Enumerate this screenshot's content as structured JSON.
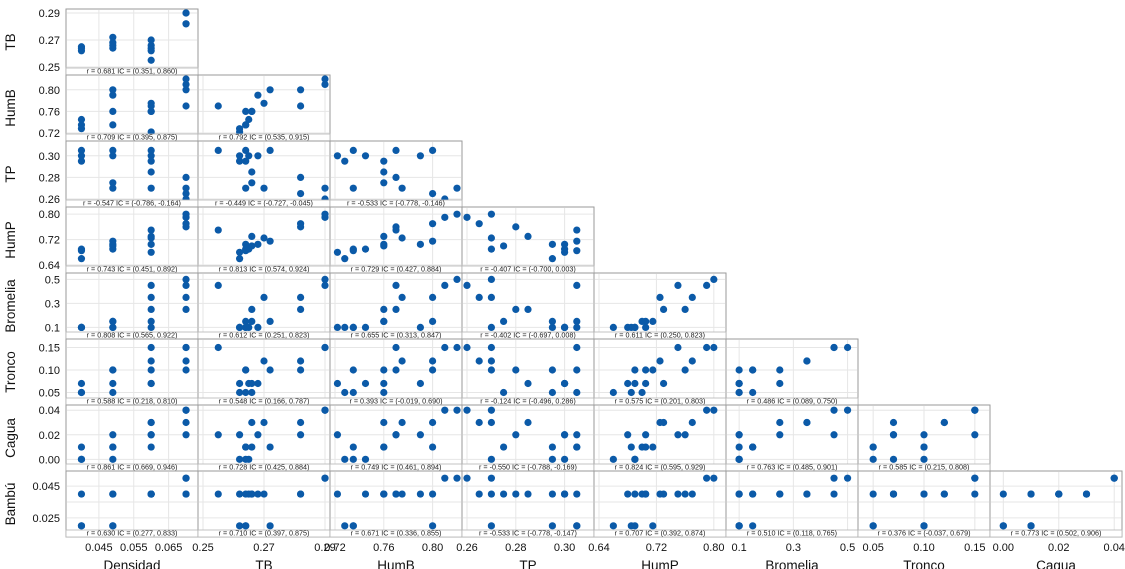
{
  "chart_data": {
    "type": "scatter",
    "variables": [
      "Densidad",
      "TB",
      "HumB",
      "TP",
      "HumP",
      "Bromelia",
      "Tronco",
      "Cagua",
      "Bambú"
    ],
    "x_variables": [
      "Densidad",
      "TB",
      "HumB",
      "TP",
      "HumP",
      "Bromelia",
      "Tronco",
      "Cagua"
    ],
    "y_variables": [
      "TB",
      "HumB",
      "TP",
      "HumP",
      "Bromelia",
      "Tronco",
      "Cagua",
      "Bambú"
    ],
    "axes": {
      "Densidad": {
        "min": 0.037,
        "max": 0.072,
        "ticks": [
          0.045,
          0.055,
          0.065
        ],
        "tick_labels": [
          "0.045",
          "0.055",
          "0.065"
        ]
      },
      "TB": {
        "min": 0.25,
        "max": 0.29,
        "ticks": [
          0.25,
          0.27,
          0.29
        ],
        "tick_labels": [
          "0.25",
          "0.27",
          "0.29"
        ]
      },
      "HumB": {
        "min": 0.72,
        "max": 0.82,
        "ticks": [
          0.72,
          0.76,
          0.8
        ],
        "tick_labels": [
          "0.72",
          "0.76",
          "0.80"
        ]
      },
      "TP": {
        "min": 0.26,
        "max": 0.31,
        "ticks": [
          0.26,
          0.28,
          0.3
        ],
        "tick_labels": [
          "0.26",
          "0.28",
          "0.30"
        ]
      },
      "HumP": {
        "min": 0.64,
        "max": 0.81,
        "ticks": [
          0.64,
          0.72,
          0.8
        ],
        "tick_labels": [
          "0.64",
          "0.72",
          "0.80"
        ]
      },
      "Bromelia": {
        "min": 0.07,
        "max": 0.52,
        "ticks": [
          0.1,
          0.3,
          0.5
        ],
        "tick_labels": [
          "0.1",
          "0.3",
          "0.5"
        ]
      },
      "Tronco": {
        "min": 0.04,
        "max": 0.16,
        "ticks": [
          0.05,
          0.1,
          0.15
        ],
        "tick_labels": [
          "0.05",
          "0.10",
          "0.15"
        ]
      },
      "Cagua": {
        "min": -0.003,
        "max": 0.041,
        "ticks": [
          0.0,
          0.02,
          0.04
        ],
        "tick_labels": [
          "0.00",
          "0.02",
          "0.04"
        ]
      },
      "Bambú": {
        "min": 0.018,
        "max": 0.052,
        "ticks": [
          0.025,
          0.045
        ],
        "tick_labels": [
          "0.025",
          "0.045"
        ]
      }
    },
    "y_ticks": {
      "TB": {
        "ticks": [
          0.25,
          0.27,
          0.29
        ],
        "tick_labels": [
          "0.25",
          "0.27",
          "0.29"
        ]
      },
      "HumB": {
        "ticks": [
          0.72,
          0.76,
          0.8
        ],
        "tick_labels": [
          "0.72",
          "0.76",
          "0.80"
        ]
      },
      "TP": {
        "ticks": [
          0.26,
          0.28,
          0.3
        ],
        "tick_labels": [
          "0.26",
          "0.28",
          "0.30"
        ]
      },
      "HumP": {
        "ticks": [
          0.64,
          0.72,
          0.8
        ],
        "tick_labels": [
          "0.64",
          "0.72",
          "0.80"
        ]
      },
      "Bromelia": {
        "ticks": [
          0.1,
          0.3,
          0.5
        ],
        "tick_labels": [
          "0.1",
          "0.3",
          "0.5"
        ]
      },
      "Tronco": {
        "ticks": [
          0.05,
          0.1,
          0.15
        ],
        "tick_labels": [
          "0.05",
          "0.10",
          "0.15"
        ]
      },
      "Cagua": {
        "ticks": [
          0.0,
          0.02,
          0.04
        ],
        "tick_labels": [
          "0.00",
          "0.02",
          "0.04"
        ]
      },
      "Bambú": {
        "ticks": [
          0.025,
          0.035,
          0.045
        ],
        "tick_labels": [
          "0.025",
          "",
          "0.045"
        ]
      }
    },
    "x_tick_labels_bottom": [
      [
        "0.045",
        "0.055",
        "0.065"
      ],
      [
        "0.25",
        "0.27",
        "0.29"
      ],
      [
        "0.72",
        "0.76",
        "0.80"
      ],
      [
        "0.26",
        "0.28",
        "0.30"
      ],
      [
        "0.64",
        "0.72",
        "0.80"
      ],
      [
        "0.1",
        "0.3",
        "0.5"
      ],
      [
        "0.05",
        "0.10",
        "0.15"
      ],
      [
        "0.00",
        "0.02",
        "0.04"
      ]
    ],
    "grid": true,
    "marker_color": "#0b5aa8",
    "observations": {
      "Densidad": [
        0.04,
        0.04,
        0.04,
        0.049,
        0.049,
        0.049,
        0.049,
        0.06,
        0.06,
        0.06,
        0.06,
        0.06,
        0.07,
        0.07,
        0.07,
        0.07
      ],
      "TB": [
        0.262,
        0.264,
        0.265,
        0.264,
        0.266,
        0.268,
        0.272,
        0.262,
        0.264,
        0.266,
        0.27,
        0.255,
        0.282,
        0.282,
        0.29,
        0.29
      ],
      "HumB": [
        0.728,
        0.735,
        0.745,
        0.735,
        0.76,
        0.79,
        0.8,
        0.722,
        0.76,
        0.76,
        0.775,
        0.77,
        0.77,
        0.8,
        0.81,
        0.82
      ],
      "TP": [
        0.295,
        0.305,
        0.3,
        0.27,
        0.275,
        0.3,
        0.305,
        0.3,
        0.295,
        0.285,
        0.27,
        0.305,
        0.28,
        0.265,
        0.26,
        0.27
      ],
      "HumP": [
        0.66,
        0.685,
        0.69,
        0.69,
        0.7,
        0.705,
        0.715,
        0.68,
        0.705,
        0.73,
        0.725,
        0.75,
        0.76,
        0.77,
        0.79,
        0.8
      ],
      "Bromelia": [
        0.1,
        0.1,
        0.1,
        0.1,
        0.15,
        0.1,
        0.15,
        0.1,
        0.15,
        0.25,
        0.35,
        0.45,
        0.25,
        0.35,
        0.45,
        0.5
      ],
      "Tronco": [
        0.05,
        0.05,
        0.07,
        0.1,
        0.05,
        0.07,
        0.1,
        0.07,
        0.1,
        0.07,
        0.12,
        0.15,
        0.1,
        0.12,
        0.15,
        0.15
      ],
      "Cagua": [
        0.0,
        0.01,
        0.0,
        0.0,
        0.01,
        0.02,
        0.01,
        0.02,
        0.01,
        0.03,
        0.03,
        0.02,
        0.02,
        0.03,
        0.04,
        0.04
      ],
      "Bambú": [
        0.02,
        0.02,
        0.04,
        0.02,
        0.04,
        0.04,
        0.02,
        0.04,
        0.04,
        0.04,
        0.04,
        0.04,
        0.04,
        0.04,
        0.05,
        0.05
      ]
    },
    "panels": [
      {
        "row": "TB",
        "col": "Densidad",
        "stat": "r = 0.681  IC = (0.351, 0.860)"
      },
      {
        "row": "HumB",
        "col": "Densidad",
        "stat": "r = 0.709  IC = (0.395, 0.875)"
      },
      {
        "row": "HumB",
        "col": "TB",
        "stat": "r = 0.792  IC = (0.535, 0.915)"
      },
      {
        "row": "TP",
        "col": "Densidad",
        "stat": "r = -0.547  IC = (-0.786, -0.164)"
      },
      {
        "row": "TP",
        "col": "TB",
        "stat": "r = -0.449  IC = (-0.727, -0.045)"
      },
      {
        "row": "TP",
        "col": "HumB",
        "stat": "r = -0.533  IC = (-0.778, -0.146)"
      },
      {
        "row": "HumP",
        "col": "Densidad",
        "stat": "r = 0.743  IC = (0.451, 0.892)"
      },
      {
        "row": "HumP",
        "col": "TB",
        "stat": "r = 0.813  IC = (0.574, 0.924)"
      },
      {
        "row": "HumP",
        "col": "HumB",
        "stat": "r = 0.729  IC = (0.427, 0.884)"
      },
      {
        "row": "HumP",
        "col": "TP",
        "stat": "r = -0.407  IC = (-0.700, 0.003)"
      },
      {
        "row": "Bromelia",
        "col": "Densidad",
        "stat": "r = 0.808  IC = (0.565, 0.922)"
      },
      {
        "row": "Bromelia",
        "col": "TB",
        "stat": "r = 0.612  IC = (0.251, 0.823)"
      },
      {
        "row": "Bromelia",
        "col": "HumB",
        "stat": "r = 0.655  IC = (0.313, 0.847)"
      },
      {
        "row": "Bromelia",
        "col": "TP",
        "stat": "r = -0.402  IC = (-0.697, 0.008)"
      },
      {
        "row": "Bromelia",
        "col": "HumP",
        "stat": "r = 0.611  IC = (0.250, 0.823)"
      },
      {
        "row": "Tronco",
        "col": "Densidad",
        "stat": "r = 0.588  IC = (0.218, 0.810)"
      },
      {
        "row": "Tronco",
        "col": "TB",
        "stat": "r = 0.548  IC = (0.166, 0.787)"
      },
      {
        "row": "Tronco",
        "col": "HumB",
        "stat": "r = 0.393  IC = (-0.019, 0.690)"
      },
      {
        "row": "Tronco",
        "col": "TP",
        "stat": "r = -0.124  IC = (-0.496, 0.286)"
      },
      {
        "row": "Tronco",
        "col": "HumP",
        "stat": "r = 0.575  IC = (0.201, 0.803)"
      },
      {
        "row": "Tronco",
        "col": "Bromelia",
        "stat": "r = 0.486  IC = (0.089, 0.750)"
      },
      {
        "row": "Cagua",
        "col": "Densidad",
        "stat": "r = 0.861  IC = (0.669, 0.946)"
      },
      {
        "row": "Cagua",
        "col": "TB",
        "stat": "r = 0.728  IC = (0.425, 0.884)"
      },
      {
        "row": "Cagua",
        "col": "HumB",
        "stat": "r = 0.749  IC = (0.461, 0.894)"
      },
      {
        "row": "Cagua",
        "col": "TP",
        "stat": "r = -0.550  IC = (-0.788, -0.169)"
      },
      {
        "row": "Cagua",
        "col": "HumP",
        "stat": "r = 0.824  IC = (0.595, 0.929)"
      },
      {
        "row": "Cagua",
        "col": "Bromelia",
        "stat": "r = 0.763  IC = (0.485, 0.901)"
      },
      {
        "row": "Cagua",
        "col": "Tronco",
        "stat": "r = 0.585  IC = (0.215, 0.808)"
      },
      {
        "row": "Bambú",
        "col": "Densidad",
        "stat": "r = 0.630  IC = (0.277, 0.833)"
      },
      {
        "row": "Bambú",
        "col": "TB",
        "stat": "r = 0.710  IC = (0.397, 0.875)"
      },
      {
        "row": "Bambú",
        "col": "HumB",
        "stat": "r = 0.671  IC = (0.336, 0.855)"
      },
      {
        "row": "Bambú",
        "col": "TP",
        "stat": "r = -0.533  IC = (-0.778, -0.147)"
      },
      {
        "row": "Bambú",
        "col": "HumP",
        "stat": "r = 0.707  IC = (0.392, 0.874)"
      },
      {
        "row": "Bambú",
        "col": "Bromelia",
        "stat": "r = 0.510  IC = (0.118, 0.765)"
      },
      {
        "row": "Bambú",
        "col": "Tronco",
        "stat": "r = 0.376  IC = (-0.037, 0.679)"
      },
      {
        "row": "Bambú",
        "col": "Cagua",
        "stat": "r = 0.773  IC = (0.502, 0.906)"
      }
    ]
  }
}
